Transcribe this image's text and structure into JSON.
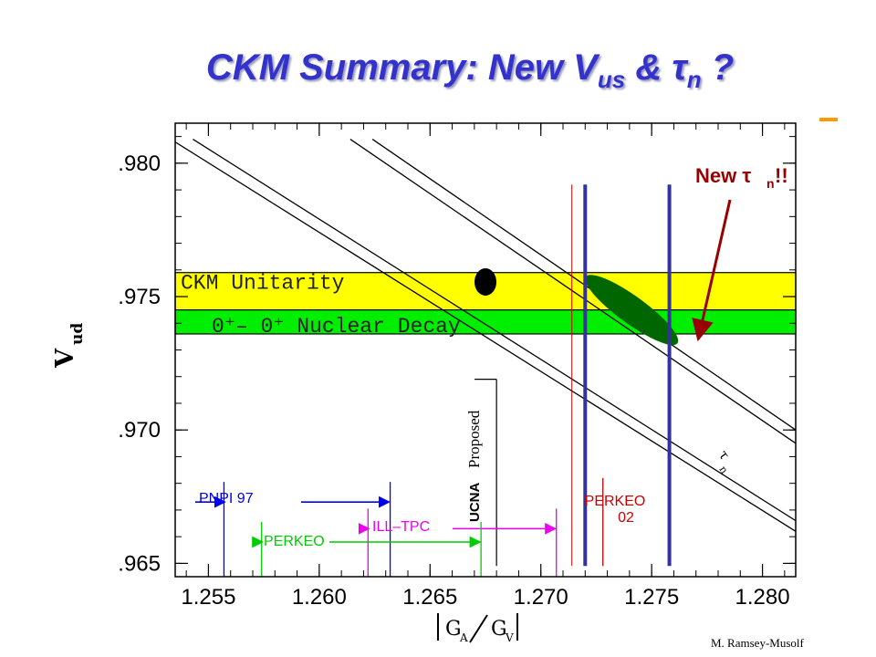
{
  "slide": {
    "title_main": "CKM Summary: New V",
    "title_sub": "us",
    "title_amp": " & ",
    "title_tau": "τ",
    "title_tau_sub": "n",
    "title_end": " ?",
    "credit": "M. Ramsey-Musolf"
  },
  "colors": {
    "title": "#3333cc",
    "ckm_band": "#ffff00",
    "nuclear_band": "#00ee00",
    "ellipse": "#006600",
    "new_arrow": "#990000",
    "vertical_lines": "#333399",
    "pnpi": "#0000ee",
    "perkeo": "#00cc00",
    "ill_tpc": "#ee00ee",
    "perkeo02": "#cc0000"
  },
  "chart_data": {
    "type": "scatter",
    "xlabel": "|G_A/G_V|",
    "ylabel": "V_ud",
    "xlim": [
      1.2535,
      1.2815
    ],
    "ylim": [
      0.9645,
      0.9815
    ],
    "xticks": [
      1.255,
      1.26,
      1.265,
      1.27,
      1.275,
      1.28
    ],
    "yticks": [
      0.965,
      0.97,
      0.975,
      0.98
    ],
    "xtick_labels": [
      "1.255",
      "1.260",
      "1.265",
      "1.270",
      "1.275",
      "1.280"
    ],
    "ytick_labels": [
      ".965",
      ".970",
      ".975",
      ".980"
    ],
    "bands": [
      {
        "label": "CKM Unitarity",
        "y_low": 0.9745,
        "y_high": 0.9759,
        "color": "#ffff00"
      },
      {
        "label": "0⁺– 0⁺ Nuclear Decay",
        "y_low": 0.9736,
        "y_high": 0.9745,
        "color": "#00ee00"
      }
    ],
    "tau_n_band": {
      "label": "τ_n",
      "lines": [
        {
          "x": [
            1.2533,
            1.2815
          ],
          "y": [
            0.9809,
            0.9662
          ]
        },
        {
          "x": [
            1.2543,
            1.2815
          ],
          "y": [
            0.9809,
            0.9666
          ]
        },
        {
          "x": [
            1.2614,
            1.2815
          ],
          "y": [
            0.9809,
            0.9695
          ]
        },
        {
          "x": [
            1.2624,
            1.2815
          ],
          "y": [
            0.9809,
            0.97
          ]
        }
      ]
    },
    "vertical_lines": [
      {
        "x": 1.272,
        "y": [
          0.9649,
          0.9792
        ],
        "color": "#333399"
      },
      {
        "x": 1.2758,
        "y": [
          0.9649,
          0.9792
        ],
        "color": "#333399"
      }
    ],
    "point": {
      "x": 1.2675,
      "y": 0.97555
    },
    "ellipse": {
      "cx": 1.2741,
      "cy": 0.9745,
      "angle_deg": 36
    },
    "range_markers": [
      {
        "label": "PNPI  97",
        "x": [
          1.2557,
          1.2632
        ],
        "y": 0.9673,
        "color": "#0000ee"
      },
      {
        "label": "ILL–TPC",
        "x": [
          1.2622,
          1.2707
        ],
        "y": 0.9663,
        "color": "#ee00ee"
      },
      {
        "label": "PERKEO",
        "x": [
          1.2574,
          1.2673
        ],
        "y": 0.9658,
        "color": "#00cc00"
      }
    ],
    "ucna": {
      "x": 1.268,
      "y": [
        0.9649,
        0.9719
      ],
      "label_sans": "UCNA",
      "label_serif": "Proposed"
    },
    "perkeo02": {
      "x": [
        1.2714,
        1.2728
      ],
      "y": [
        0.9649,
        0.9682
      ],
      "label_line1": "PERKEO",
      "label_line2": "02",
      "color": "#cc0000"
    },
    "new_tau": {
      "text": "New τ",
      "sub": "n",
      "suffix": " !!",
      "arrow_to": {
        "x": 1.2771,
        "y": 0.9734
      }
    }
  }
}
